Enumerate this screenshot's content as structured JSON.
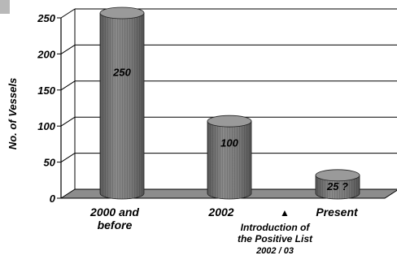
{
  "chart_data": {
    "type": "bar",
    "title": "",
    "xlabel": "",
    "ylabel": "No. of Vessels",
    "ylim": [
      0,
      250
    ],
    "yticks": [
      "0",
      "50",
      "100",
      "150",
      "200",
      "250"
    ],
    "grid": true,
    "style": "3d-cylinder",
    "bar_color": "#7a7a7a",
    "floor_color": "#8c8c8c",
    "categories": [
      {
        "lines": [
          "2000 and",
          "before"
        ]
      },
      {
        "lines": [
          "2002"
        ]
      },
      {
        "lines": [
          "Present"
        ]
      }
    ],
    "values": [
      250,
      100,
      25
    ],
    "data_labels": [
      "250",
      "100",
      "25 ?"
    ],
    "annotation": {
      "marker": "▲",
      "lines": [
        "Introduction of",
        "the Positive List",
        "2002 / 03"
      ]
    }
  }
}
